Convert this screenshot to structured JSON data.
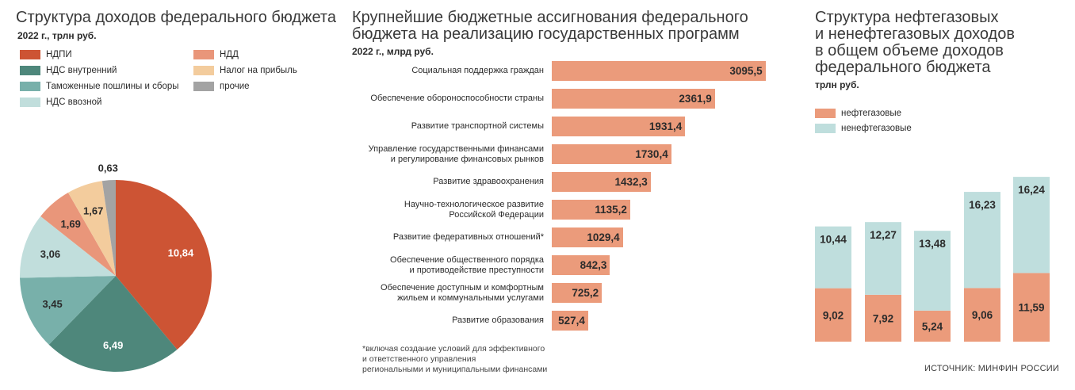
{
  "colors": {
    "ndpi": "#cd5434",
    "nds_internal": "#4e877b",
    "customs": "#78b0aa",
    "nds_import": "#c1dedc",
    "ndd": "#e9967a",
    "profit_tax": "#f3cc9d",
    "other": "#a3a3a3",
    "bar": "#eb9b7b",
    "oil": "#eb9b7b",
    "nonoil": "#bfdedd"
  },
  "pie": {
    "title": "Структура доходов федерального бюджета",
    "subtitle": "2022 г., трлн руб.",
    "legend": [
      "НДПИ",
      "НДС внутренний",
      "Таможенные пошлины и сборы",
      "НДС ввозной",
      "НДД",
      "Налог на прибыль",
      "прочие"
    ]
  },
  "bars": {
    "title": "Крупнейшие бюджетные ассигнования федерального\nбюджета на реализацию государственных программ",
    "subtitle": "2022 г., млрд руб.",
    "footnote": "*включая создание условий для эффективного\nи ответственного управления\nрегиональными и муниципальными финансами"
  },
  "stack": {
    "title": "Структура нефтегазовых\nи ненефтегазовых доходов\nв общем объеме доходов\nфедерального бюджета",
    "subtitle": "трлн руб.",
    "legend": [
      "нефтегазовые",
      "ненефтегазовые"
    ]
  },
  "source": "ИСТОЧНИК: МИНФИН РОССИИ",
  "chart_data": [
    {
      "type": "pie",
      "title": "Структура доходов федерального бюджета",
      "subtitle": "2022 г., трлн руб.",
      "categories": [
        "НДПИ",
        "НДС внутренний",
        "Таможенные пошлины и сборы",
        "НДС ввозной",
        "НДД",
        "Налог на прибыль",
        "прочие"
      ],
      "values": [
        10.84,
        6.49,
        3.45,
        3.06,
        1.69,
        1.67,
        0.63
      ],
      "labels": [
        "10,84",
        "6,49",
        "3,45",
        "3,06",
        "1,69",
        "1,67",
        "0,63"
      ],
      "legend": "top"
    },
    {
      "type": "bar",
      "orientation": "horizontal",
      "title": "Крупнейшие бюджетные ассигнования федерального бюджета на реализацию государственных программ",
      "subtitle": "2022 г., млрд руб.",
      "categories": [
        "Социальная поддержка граждан",
        "Обеспечение обороноспособности страны",
        "Развитие транспортной системы",
        "Управление государственными финансами\nи регулирование финансовых рынков",
        "Развитие здравоохранения",
        "Научно-технологическое развитие\nРоссийской Федерации",
        "Развитие федеративных отношений*",
        "Обеспечение общественного порядка\nи противодействие преступности",
        "Обеспечение доступным и комфортным\nжильем и коммунальными услугами",
        "Развитие образования"
      ],
      "values": [
        3095.5,
        2361.9,
        1931.4,
        1730.4,
        1432.3,
        1135.2,
        1029.4,
        842.3,
        725.2,
        527.4
      ],
      "labels": [
        "3095,5",
        "2361,9",
        "1931,4",
        "1730,4",
        "1432,3",
        "1135,2",
        "1029,4",
        "842,3",
        "725,2",
        "527,4"
      ]
    },
    {
      "type": "bar",
      "stacked": true,
      "title": "Структура нефтегазовых и ненефтегазовых доходов в общем объеме доходов федерального бюджета",
      "subtitle": "трлн руб.",
      "series": [
        {
          "name": "нефтегазовые",
          "values": [
            9.02,
            7.92,
            5.24,
            9.06,
            11.59
          ],
          "labels": [
            "9,02",
            "7,92",
            "5,24",
            "9,06",
            "11,59"
          ]
        },
        {
          "name": "ненефтегазовые",
          "values": [
            10.44,
            12.27,
            13.48,
            16.23,
            16.24
          ],
          "labels": [
            "10,44",
            "12,27",
            "13,48",
            "16,23",
            "16,24"
          ]
        }
      ],
      "legend": "top-left"
    }
  ]
}
